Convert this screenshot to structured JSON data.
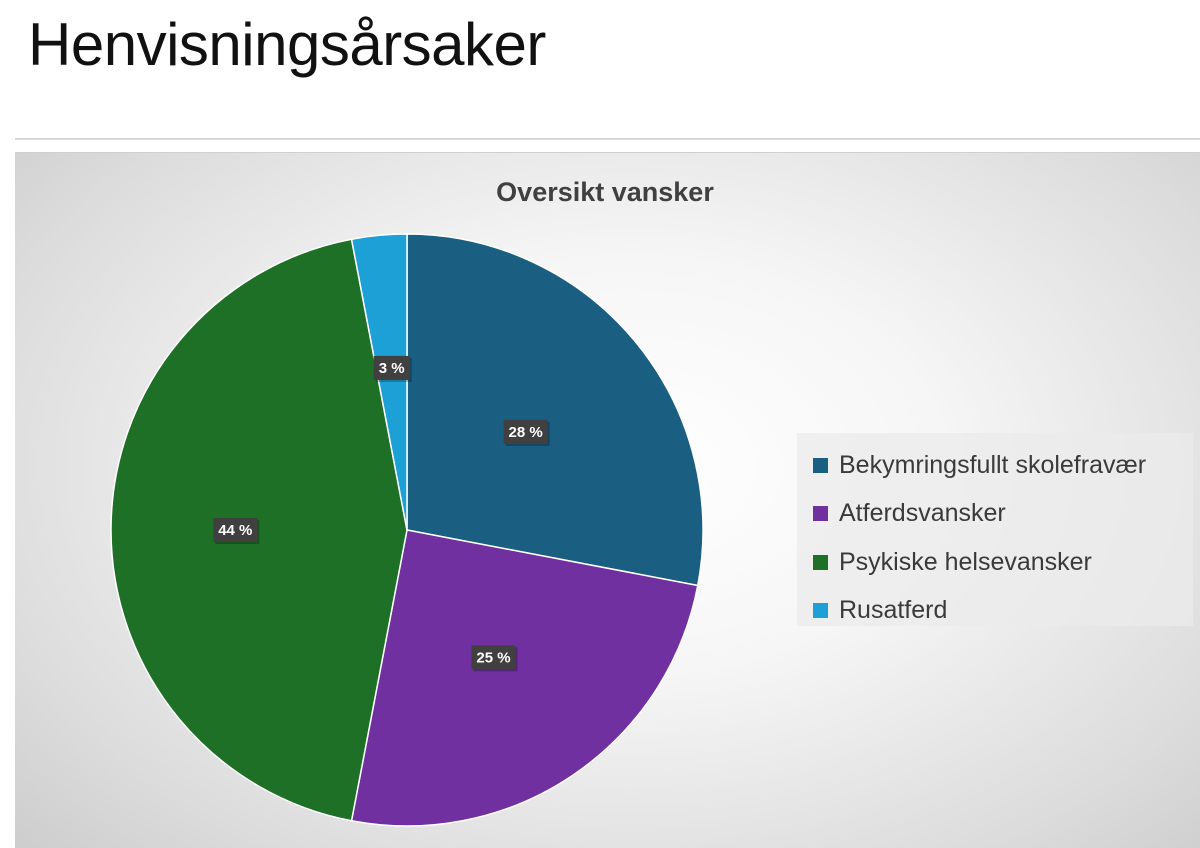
{
  "page": {
    "title": "Henvisningsårsaker"
  },
  "chart_data": {
    "type": "pie",
    "title": "Oversikt vansker",
    "slices": [
      {
        "name": "Bekymringsfullt skolefravær",
        "value": 28,
        "label": "28 %",
        "color": "#1a5e82"
      },
      {
        "name": "Atferdsvansker",
        "value": 25,
        "label": "25 %",
        "color": "#7030a0"
      },
      {
        "name": "Psykiske helsevansker",
        "value": 44,
        "label": "44 %",
        "color": "#1e7026"
      },
      {
        "name": "Rusatferd",
        "value": 3,
        "label": "3 %",
        "color": "#1ca0d5"
      }
    ],
    "legend_position": "right",
    "start_angle": "top, clockwise"
  }
}
